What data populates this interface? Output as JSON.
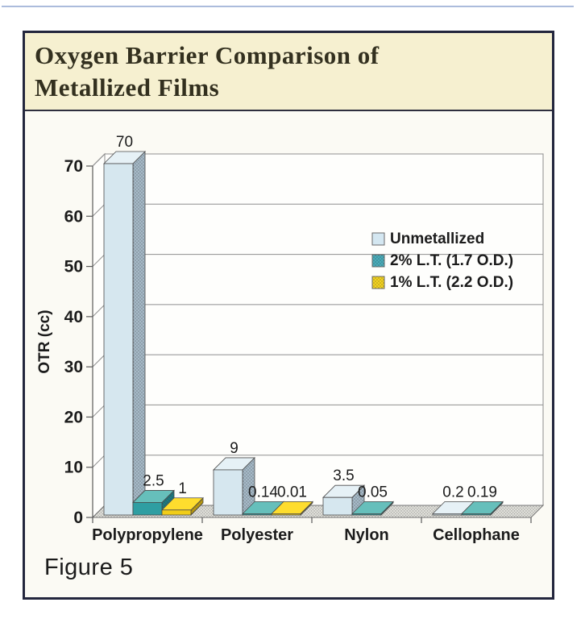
{
  "header": {
    "title_line1": "Oxygen Barrier Comparison of",
    "title_line2": "Metallized Films"
  },
  "footer": {
    "caption": "Figure 5"
  },
  "colors": {
    "frame_border": "#23263d",
    "title_band_bg": "#f6f0d0",
    "body_bg": "#fbfaf4",
    "wall_bg": "#fefefc",
    "grid": "#8f8f8f",
    "floor_fill": "#e6e6e0",
    "axis_line": "#5a5a5a",
    "text": "#1b1b1b"
  },
  "chart_data": {
    "type": "bar",
    "projection": "3d",
    "title": "Oxygen Barrier Comparison of Metallized Films",
    "ylabel": "OTR (cc)",
    "xlabel": "",
    "ylim": [
      0,
      70
    ],
    "yticks": [
      0,
      10,
      20,
      30,
      40,
      50,
      60,
      70
    ],
    "grid": true,
    "legend_position": "middle-right",
    "categories": [
      "Polypropylene",
      "Polyester",
      "Nylon",
      "Cellophane"
    ],
    "series": [
      {
        "name": "Unmetallized",
        "values": [
          70,
          9,
          3.5,
          0.2
        ],
        "labels": [
          "70",
          "9",
          "3.5",
          "0.2"
        ],
        "color_front": "#d6e7ef",
        "color_top": "#e6f1f6",
        "color_side": "#a6bac8",
        "legend_fill": "#d4e7f1"
      },
      {
        "name": "2% L.T. (1.7 O.D.)",
        "values": [
          2.5,
          0.14,
          0.05,
          0.19
        ],
        "labels": [
          "2.5",
          "0.14",
          "0.05",
          "0.19"
        ],
        "color_front": "#2f9ea2",
        "color_top": "#66bfbb",
        "color_side": "#1e7b82",
        "legend_fill": "#49adbb"
      },
      {
        "name": "1% L.T. (2.2 O.D.)",
        "values": [
          1,
          0.01,
          null,
          null
        ],
        "labels": [
          "1",
          "0.01",
          null,
          null
        ],
        "color_front": "#f1cd18",
        "color_top": "#fedd2e",
        "color_side": "#bd9d12",
        "legend_fill": "#f4d41f"
      }
    ]
  }
}
